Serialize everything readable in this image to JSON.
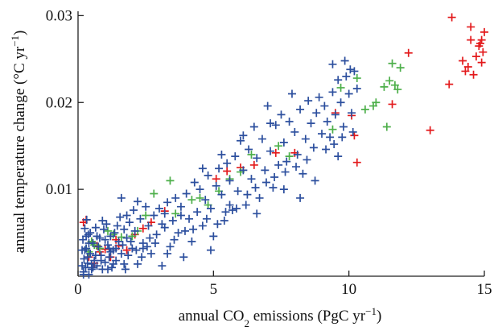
{
  "chart_data": {
    "type": "scatter",
    "xlabel_prefix": "annual CO",
    "xlabel_sub": "2",
    "xlabel_mid": " emissions (PgC yr",
    "xlabel_sup": "−1",
    "xlabel_suffix": ")",
    "ylabel_prefix": "annual temperature change (°C yr",
    "ylabel_sup": "−1",
    "ylabel_suffix": ")",
    "xlim": [
      0,
      15
    ],
    "ylim": [
      0,
      0.0305
    ],
    "xticks": [
      {
        "value": 0,
        "label": "0"
      },
      {
        "value": 5,
        "label": "5"
      },
      {
        "value": 10,
        "label": "10"
      },
      {
        "value": 15,
        "label": "15"
      }
    ],
    "yticks": [
      {
        "value": 0.01,
        "label": "0.01"
      },
      {
        "value": 0.02,
        "label": "0.02"
      },
      {
        "value": 0.03,
        "label": "0.03"
      }
    ],
    "marker": "plus",
    "grid": false,
    "series": [
      {
        "color": "#e31a1c",
        "points": [
          [
            0.2,
            0.0062
          ],
          [
            0.3,
            0.0065
          ],
          [
            0.5,
            0.004
          ],
          [
            0.7,
            0.0035
          ],
          [
            0.8,
            0.0028
          ],
          [
            1.0,
            0.0031
          ],
          [
            0.4,
            0.0022
          ],
          [
            0.6,
            0.0015
          ],
          [
            1.4,
            0.0042
          ],
          [
            1.5,
            0.0035
          ],
          [
            2.1,
            0.0048
          ],
          [
            2.4,
            0.0055
          ],
          [
            2.7,
            0.0062
          ],
          [
            3.2,
            0.0075
          ],
          [
            1.8,
            0.003
          ],
          [
            1.2,
            0.0022
          ],
          [
            5.1,
            0.0112
          ],
          [
            5.5,
            0.0121
          ],
          [
            6.0,
            0.0125
          ],
          [
            6.5,
            0.0128
          ],
          [
            7.3,
            0.0142
          ],
          [
            8.0,
            0.0142
          ],
          [
            9.5,
            0.0188
          ],
          [
            10.1,
            0.0185
          ],
          [
            10.2,
            0.0162
          ],
          [
            10.3,
            0.0131
          ],
          [
            11.6,
            0.0198
          ],
          [
            12.2,
            0.0257
          ],
          [
            13.0,
            0.0168
          ],
          [
            13.7,
            0.0221
          ],
          [
            13.8,
            0.0298
          ],
          [
            14.2,
            0.0248
          ],
          [
            14.3,
            0.0236
          ],
          [
            14.4,
            0.0241
          ],
          [
            14.5,
            0.0272
          ],
          [
            14.6,
            0.0232
          ],
          [
            14.7,
            0.0253
          ],
          [
            14.8,
            0.0265
          ],
          [
            14.9,
            0.0246
          ],
          [
            15.0,
            0.0281
          ],
          [
            14.5,
            0.0287
          ],
          [
            14.9,
            0.0272
          ],
          [
            14.85,
            0.0268
          ],
          [
            14.95,
            0.0258
          ]
        ]
      },
      {
        "color": "#4daf4a",
        "points": [
          [
            0.3,
            0.0032
          ],
          [
            0.4,
            0.0028
          ],
          [
            0.5,
            0.004
          ],
          [
            0.6,
            0.0036
          ],
          [
            0.8,
            0.0032
          ],
          [
            1.1,
            0.0052
          ],
          [
            1.3,
            0.0048
          ],
          [
            1.6,
            0.0045
          ],
          [
            2.0,
            0.0046
          ],
          [
            2.2,
            0.0052
          ],
          [
            2.5,
            0.007
          ],
          [
            2.8,
            0.0095
          ],
          [
            3.4,
            0.011
          ],
          [
            3.6,
            0.0072
          ],
          [
            4.2,
            0.0088
          ],
          [
            4.5,
            0.009
          ],
          [
            4.8,
            0.0082
          ],
          [
            5.2,
            0.0098
          ],
          [
            5.6,
            0.0112
          ],
          [
            6.0,
            0.012
          ],
          [
            6.4,
            0.014
          ],
          [
            7.4,
            0.015
          ],
          [
            7.8,
            0.0138
          ],
          [
            9.4,
            0.0169
          ],
          [
            9.7,
            0.0217
          ],
          [
            10.3,
            0.0228
          ],
          [
            10.9,
            0.0196
          ],
          [
            11.0,
            0.02
          ],
          [
            11.3,
            0.0218
          ],
          [
            11.5,
            0.0225
          ],
          [
            11.6,
            0.0245
          ],
          [
            11.7,
            0.022
          ],
          [
            11.8,
            0.0215
          ],
          [
            11.9,
            0.024
          ],
          [
            11.4,
            0.0172
          ],
          [
            10.6,
            0.0192
          ]
        ]
      },
      {
        "color": "#2c4f9e",
        "points": [
          [
            0.15,
            0.0012
          ],
          [
            0.15,
            0.003
          ],
          [
            0.18,
            0.0042
          ],
          [
            0.2,
            0.0005
          ],
          [
            0.22,
            0.002
          ],
          [
            0.25,
            0.0055
          ],
          [
            0.28,
            0.001
          ],
          [
            0.3,
            0.0032
          ],
          [
            0.32,
            0.0065
          ],
          [
            0.35,
            0.0015
          ],
          [
            0.38,
            0.0048
          ],
          [
            0.4,
            0.0002
          ],
          [
            0.45,
            0.0026
          ],
          [
            0.5,
            0.0008
          ],
          [
            0.55,
            0.0038
          ],
          [
            0.6,
            0.0018
          ],
          [
            0.65,
            0.0056
          ],
          [
            0.7,
            0.0012
          ],
          [
            0.75,
            0.0034
          ],
          [
            0.8,
            0.0044
          ],
          [
            0.85,
            0.0024
          ],
          [
            0.9,
            0.0008
          ],
          [
            0.95,
            0.0054
          ],
          [
            1.0,
            0.0016
          ],
          [
            1.05,
            0.006
          ],
          [
            1.1,
            0.0036
          ],
          [
            1.15,
            0.0022
          ],
          [
            1.2,
            0.0046
          ],
          [
            1.25,
            0.001
          ],
          [
            1.3,
            0.003
          ],
          [
            1.35,
            0.005
          ],
          [
            1.4,
            0.0018
          ],
          [
            1.5,
            0.004
          ],
          [
            1.55,
            0.0068
          ],
          [
            1.6,
            0.0026
          ],
          [
            1.7,
            0.0054
          ],
          [
            1.75,
            0.0008
          ],
          [
            1.8,
            0.0044
          ],
          [
            1.9,
            0.0062
          ],
          [
            2.0,
            0.0032
          ],
          [
            2.05,
            0.0076
          ],
          [
            2.1,
            0.0052
          ],
          [
            2.2,
            0.0014
          ],
          [
            2.3,
            0.0066
          ],
          [
            2.4,
            0.0038
          ],
          [
            2.5,
            0.008
          ],
          [
            2.6,
            0.0058
          ],
          [
            2.7,
            0.0026
          ],
          [
            2.8,
            0.007
          ],
          [
            2.9,
            0.0048
          ],
          [
            3.0,
            0.0078
          ],
          [
            3.1,
            0.0012
          ],
          [
            3.2,
            0.0056
          ],
          [
            3.3,
            0.0085
          ],
          [
            3.4,
            0.0034
          ],
          [
            3.5,
            0.0064
          ],
          [
            3.6,
            0.009
          ],
          [
            3.7,
            0.005
          ],
          [
            3.8,
            0.008
          ],
          [
            3.9,
            0.0022
          ],
          [
            4.0,
            0.0095
          ],
          [
            4.1,
            0.0066
          ],
          [
            4.2,
            0.004
          ],
          [
            4.3,
            0.0108
          ],
          [
            4.4,
            0.0074
          ],
          [
            4.5,
            0.01
          ],
          [
            4.6,
            0.0058
          ],
          [
            4.7,
            0.0088
          ],
          [
            4.8,
            0.0116
          ],
          [
            4.9,
            0.0078
          ],
          [
            5.0,
            0.0046
          ],
          [
            5.1,
            0.0104
          ],
          [
            5.2,
            0.0124
          ],
          [
            5.3,
            0.0094
          ],
          [
            5.4,
            0.0064
          ],
          [
            5.5,
            0.013
          ],
          [
            5.6,
            0.011
          ],
          [
            5.7,
            0.0076
          ],
          [
            5.8,
            0.0138
          ],
          [
            5.9,
            0.0098
          ],
          [
            6.0,
            0.0156
          ],
          [
            6.1,
            0.0122
          ],
          [
            6.2,
            0.0082
          ],
          [
            6.3,
            0.0146
          ],
          [
            6.4,
            0.0112
          ],
          [
            6.5,
            0.0172
          ],
          [
            6.6,
            0.0136
          ],
          [
            6.7,
            0.009
          ],
          [
            6.8,
            0.0158
          ],
          [
            6.9,
            0.0122
          ],
          [
            7.0,
            0.0196
          ],
          [
            7.1,
            0.0144
          ],
          [
            7.2,
            0.0102
          ],
          [
            7.3,
            0.0174
          ],
          [
            7.4,
            0.0128
          ],
          [
            7.5,
            0.0186
          ],
          [
            7.6,
            0.0154
          ],
          [
            7.7,
            0.0132
          ],
          [
            7.8,
            0.0178
          ],
          [
            7.9,
            0.021
          ],
          [
            8.0,
            0.0166
          ],
          [
            8.1,
            0.014
          ],
          [
            8.2,
            0.0192
          ],
          [
            8.3,
            0.0118
          ],
          [
            8.4,
            0.0158
          ],
          [
            8.5,
            0.0202
          ],
          [
            8.6,
            0.0176
          ],
          [
            8.7,
            0.0148
          ],
          [
            8.8,
            0.0188
          ],
          [
            8.9,
            0.0206
          ],
          [
            9.0,
            0.0164
          ],
          [
            9.1,
            0.0196
          ],
          [
            9.2,
            0.0178
          ],
          [
            9.3,
            0.016
          ],
          [
            9.4,
            0.0212
          ],
          [
            9.5,
            0.0186
          ],
          [
            9.6,
            0.0226
          ],
          [
            9.7,
            0.02
          ],
          [
            9.8,
            0.0172
          ],
          [
            9.9,
            0.023
          ],
          [
            10.0,
            0.021
          ],
          [
            10.1,
            0.0188
          ],
          [
            10.2,
            0.0236
          ],
          [
            9.85,
            0.0248
          ],
          [
            10.05,
            0.0238
          ],
          [
            9.4,
            0.0244
          ],
          [
            9.6,
            0.0138
          ],
          [
            10.3,
            0.0216
          ],
          [
            1.7,
            0.0014
          ],
          [
            2.4,
            0.0032
          ],
          [
            3.1,
            0.006
          ],
          [
            3.8,
            0.007
          ],
          [
            4.9,
            0.003
          ],
          [
            5.6,
            0.0082
          ],
          [
            6.6,
            0.0072
          ],
          [
            7.6,
            0.01
          ],
          [
            8.2,
            0.009
          ],
          [
            4.6,
            0.0124
          ],
          [
            5.3,
            0.014
          ],
          [
            6.1,
            0.0162
          ],
          [
            7.1,
            0.0176
          ],
          [
            3.2,
            0.0072
          ],
          [
            3.3,
            0.0026
          ],
          [
            1.6,
            0.009
          ],
          [
            1.8,
            0.007
          ],
          [
            2.2,
            0.0086
          ],
          [
            0.55,
            0.001
          ],
          [
            0.7,
            0.0046
          ],
          [
            0.9,
            0.0064
          ],
          [
            1.1,
            0.0008
          ],
          [
            1.2,
            0.0028
          ],
          [
            1.45,
            0.0058
          ],
          [
            1.95,
            0.004
          ],
          [
            2.35,
            0.0022
          ],
          [
            2.65,
            0.0044
          ],
          [
            0.2,
            0.0002
          ],
          [
            0.25,
            0.003
          ],
          [
            0.3,
            0.0046
          ],
          [
            0.35,
            0.0022
          ],
          [
            0.4,
            0.0038
          ],
          [
            0.45,
            0.005
          ],
          [
            0.5,
            0.0014
          ],
          [
            0.65,
            0.0024
          ],
          [
            0.85,
            0.0018
          ],
          [
            1.0,
            0.0042
          ],
          [
            1.15,
            0.0032
          ],
          [
            1.3,
            0.0014
          ],
          [
            1.4,
            0.0032
          ],
          [
            1.65,
            0.0036
          ],
          [
            1.85,
            0.0024
          ],
          [
            2.15,
            0.003
          ],
          [
            2.55,
            0.0034
          ],
          [
            2.85,
            0.0038
          ],
          [
            3.55,
            0.0042
          ],
          [
            3.95,
            0.0052
          ],
          [
            4.25,
            0.0054
          ],
          [
            4.75,
            0.0066
          ],
          [
            5.15,
            0.006
          ],
          [
            5.45,
            0.0074
          ],
          [
            5.85,
            0.0078
          ],
          [
            6.25,
            0.0094
          ],
          [
            6.55,
            0.0102
          ],
          [
            6.95,
            0.0108
          ],
          [
            7.25,
            0.0114
          ],
          [
            7.65,
            0.012
          ],
          [
            8.05,
            0.0126
          ],
          [
            8.45,
            0.0134
          ],
          [
            8.75,
            0.011
          ],
          [
            9.15,
            0.0146
          ],
          [
            9.45,
            0.0152
          ],
          [
            9.75,
            0.016
          ],
          [
            10.15,
            0.0166
          ]
        ]
      }
    ]
  }
}
